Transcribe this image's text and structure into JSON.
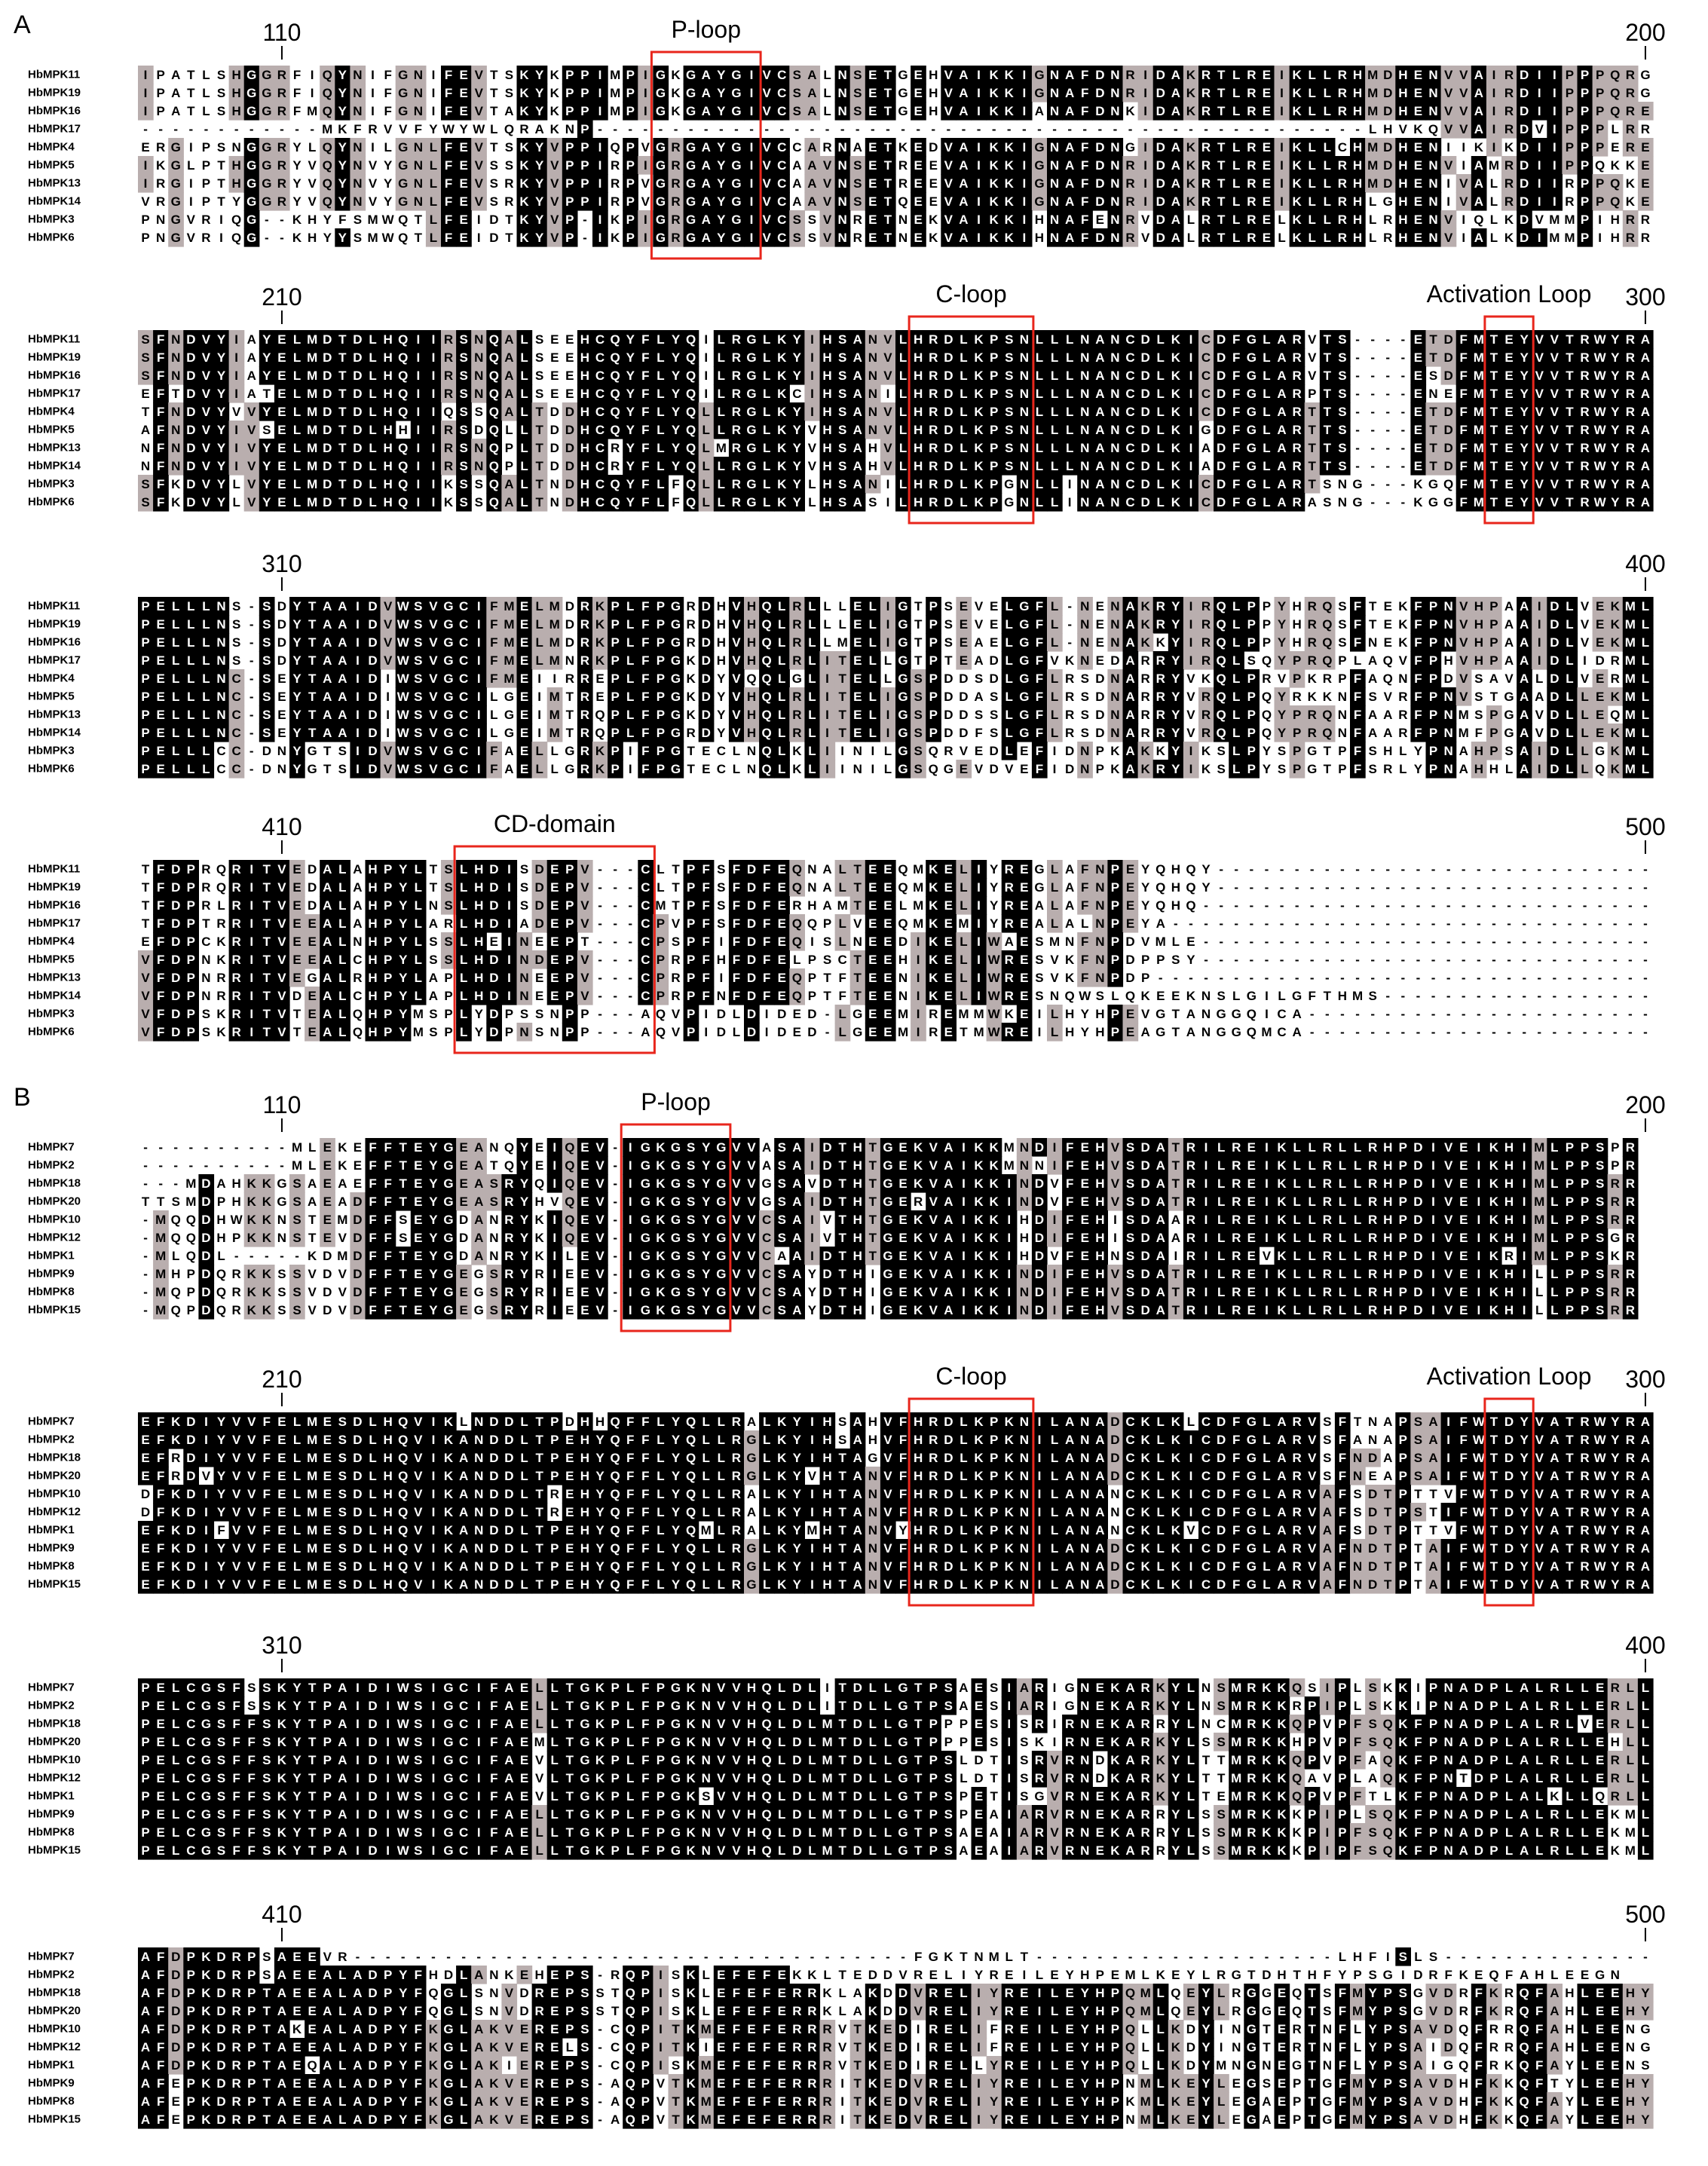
{
  "panels": [
    {
      "label": "A",
      "blocks": [
        {
          "start": 110,
          "end": 200,
          "motifs": [
            "P-loop"
          ],
          "rows": [
            {
              "name": "HbMPK11",
              "seq": "IPATLSHGGRFIQYNIFGNIFEVTSKYKPPIMPIGKGAYGIVCSALNSETGEHVAIKKIGNAFDNRIDAKRTLREIKLLRHMDHENVVAIRDIIPPPQRG"
            },
            {
              "name": "HbMPK19",
              "seq": "IPATLSHGGRFIQYNIFGNIFEVTSKYKPPIMPIGKGAYGIVCSALNSETGEHVAIKKIGNAFDNRIDAKRTLREIKLLRHMDHENVVAIRDIIPPPQRG"
            },
            {
              "name": "HbMPK16",
              "seq": "IPATLSHGGRFMQYNIFGNIFEVTAKYKPPIMPIGKGAYGIVCSALNSETGEHVAIKKIANAFDNKIDAKRTLREIKLLRHMDHENVVAIRDIIPPPQRE"
            },
            {
              "name": "HbMPK17",
              "seq": "------------MKFRVVFYWYWLQRAKNP---------------------------------------------------LHVKQVVAIRDVIPPPLRR"
            },
            {
              "name": "HbMPK4",
              "seq": "ERGIPSNGGRYLQYNILGNLFEVTSKYVPPIQPVGRGAYGIVCCARNAETKEDVAIKKIGNAFDNGIDAKRTLREIKLLCHMDHENIIKIKDIIPPPERE"
            },
            {
              "name": "HbMPK5",
              "seq": "IKGLPTHGGRYVQYNVYGNLFEVSSKYVPPIRPIGRGAYGIVCAAVNSETREEVAIKKIGNAFDNRIDAKRTLREIKLLRHMDHENVIAMRDIIPPQKKE"
            },
            {
              "name": "HbMPK13",
              "seq": "IRGIPTHGGRYVQYNVYGNLFEVSRKYVPPIRPVGRGAYGIVCAAVNSETREEVAIKKIGNAFDNRIDAKRTLREIKLLRHMDHENIVALRDIIRPPQKE"
            },
            {
              "name": "HbMPK14",
              "seq": "VRGIPTYGGRYVQYNVYGNLFEVSRKYVPPIRPVGRGAYGIVCAAVNSETQEEVAIKKIGNAFDNRIDAKRTLREIKLLRHLGHENIVALRDIIRPPQKE"
            },
            {
              "name": "HbMPK3",
              "seq": "PNGVRIQG--KHYFSMWQTLFEIDTKYVP-IKPIGRGAYGIVCSSVNRETNEKVAIKKIHNAFENRVDALRTLRELKLLRHLRHENVIQLKDVMMPIHRR"
            },
            {
              "name": "HbMPK6",
              "seq": "PNGVRIQG--KHYYSMWQTLFEIDTKYVP-IKPIGRGAYGIVCSSVNRETNEKVAIKKIHNAFDNRVDALRTLRELKLLRHLRHENVIALKDIMMPIHRR"
            }
          ]
        },
        {
          "start": 210,
          "end": 300,
          "motifs": [
            "C-loop",
            "Activation Loop"
          ],
          "rows": [
            {
              "name": "HbMPK11",
              "seq": "SFNDVYIAYELMDTDLHQIIRSNQALSEEHCQYFLYQILRGLKYIHSANVLHRDLKPSNLLLNANCDLKICDFGLARVTS----ETDFMTEYVVTRWYRA"
            },
            {
              "name": "HbMPK19",
              "seq": "SFNDVYIAYELMDTDLHQIIRSNQALSEEHCQYFLYQILRGLKYIHSANVLHRDLKPSNLLLNANCDLKICDFGLARVTS----ETDFMTEYVVTRWYRA"
            },
            {
              "name": "HbMPK16",
              "seq": "SFNDVYIAYELMDTDLHQIIRSNQALSEEHCQYFLYQILRGLKYIHSANVLHRDLKPSNLLLNANCDLKICDFGLARVTS----ESDFMTEYVVTRWYRA"
            },
            {
              "name": "HbMPK17",
              "seq": "EFTDVYIATELMDTDLHQIIRSNQALSEEHCQYFLYQILRGLKCIHSANILHRDLKPSNLLLNANCDLKICDFGLARPTS----ENEFMTEYVVTRWYRA"
            },
            {
              "name": "HbMPK4",
              "seq": "TFNDVYVVYELMDTDLHQIIQSSQALTDDHCQYFLYQLLRGLKYIHSANVLHRDLKPSNLLLNANCDLKICDFGLARTTS----ETDFMTEYVVTRWYRA"
            },
            {
              "name": "HbMPK5",
              "seq": "AFNDVYIVSELMDTDLHHIIRSDQLLTDDHCQYFLYQLLRGLKYVHSANVLHRDLKPSNLLLNANCDLKIGDFGLARTTS----ETDFMTEYVVTRWYRA"
            },
            {
              "name": "HbMPK13",
              "seq": "NFNDVYIVYELMDTDLHQIIRSNQPLTDDHCRYFLYQLMRGLKYVHSAHVLHRDLKPSNLLLNANCDLKIADFGLARTTS----ETDFMTEYVVTRWYRA"
            },
            {
              "name": "HbMPK14",
              "seq": "NFNDVYIVYELMDTDLHQIIRSNQPLTDDHCRYFLYQLLRGLKYVHSAHVLHRDLKPSNLLLNANCDLKIADFGLARTTS----ETDFMTEYVVTRWYRA"
            },
            {
              "name": "HbMPK3",
              "seq": "SFKDVYLVYELMDTDLHQIIKSSQALTNDHCQYFLFQLLRGLKYLHSANILHRDLKPGNLLINANCDLKICDFGLARTSNG---KGQFMTEYVVTRWYRA"
            },
            {
              "name": "HbMPK6",
              "seq": "SFKDVYLVYELMDTDLHQIIKSSQALTNDHCQYFLFQLLRGLKYLHSASILHRDLKPGNLLINANCDLKICDFGLARASNG---KGGFMTEYVVTRWYRA"
            }
          ]
        },
        {
          "start": 310,
          "end": 400,
          "motifs": [],
          "rows": [
            {
              "name": "HbMPK11",
              "seq": "PELLLNS-SDYTAAIDVWSVGCIFMELMDRKPLFPGRDHVHQLRLLLELIGTPSEVELGFL-NENAKRYIRQLPPYHRQSFTEKFPNVHPAAIDLVEKML"
            },
            {
              "name": "HbMPK19",
              "seq": "PELLLNS-SDYTAAIDVWSVGCIFMELMDRKPLFPGRDHVHQLRLLLELIGTPSEVELGFL-NENAKRYIRQLPPYHRQSFTEKFPNVHPAAIDLVEKML"
            },
            {
              "name": "HbMPK16",
              "seq": "PELLLNS-SDYTAAIDVWSVGCIFMELMDRKPLFPGRDHVHQLRLLMELIGTPSEAELGFL-NENAKKYIRQLPPYHRQSFNEKFPNVHPAAIDLVEKML"
            },
            {
              "name": "HbMPK17",
              "seq": "PELLLNS-SDYTAAIDVWSVGCIFMELMNRKPLFPGKDHVHQLRLITELLGTPTEADLGFVKNEDARRYIRQLSQYPRQPLAQVFPHVHPAAIDLIDRML"
            },
            {
              "name": "HbMPK4",
              "seq": "PELLLNC-SEYTAAIDIWSVGCIFMEIIRREPLFPGKDYVQQLGLITELLGSPDDSDLGFLRSDNARRYVKQLPRVPKRPFAQNFPDVSAVALDLVERML"
            },
            {
              "name": "HbMPK5",
              "seq": "PELLLNC-SEYTAAIDIWSVGCILGEIMTREPLFPGKDYVHQLRLITELIGSPDDASLGFLRSDNARRYVRQLPQYRKKNFSVRFPNVSTGAADLLEKML"
            },
            {
              "name": "HbMPK13",
              "seq": "PELLLNC-SEYTAAIDIWSVGCILGEIMTRQPLFPGKDYVHQLRLITELIGSPDDSSLGFLRSDNARRYVRQLPQYPRQNFAARFPNMSPGAVDLLEQML"
            },
            {
              "name": "HbMPK14",
              "seq": "PELLLNC-SEYTAAIDIWSVGCILGEIMTRQPLFPGRDYVHQLRLITELIGSPDDFSLGFLRSDNARRYVRQLPQYPRQNFAARFPNMFPGAVDLLEKML"
            },
            {
              "name": "HbMPK3",
              "seq": "PELLLCC-DNYGTSIDVWSVGCIFAELLGRKPIFPGTECLNQLKLIINILGSQRVEDLEFIDNPKAKKYIKSLPYSPGTPFSHLYPNAHPSAIDLLGKML"
            },
            {
              "name": "HbMPK6",
              "seq": "PELLLCC-DNYGTSIDVWSVGCIFAELLGRKPIFPGTECLNQLKLIINILGSQGEVDVEFIDNPKAKRYIKSLPYSPGTPFSRLYPNAHHLAIDLLQKML"
            }
          ]
        },
        {
          "start": 410,
          "end": 500,
          "motifs": [
            "CD-domain"
          ],
          "rows": [
            {
              "name": "HbMPK11",
              "seq": "TFDPRQRITVEDALAHPYLTSLHDISDEPV---CLTPFSFDFEQNALTEEQMKELIYREGLAFNPEYQHQY-----------------------------"
            },
            {
              "name": "HbMPK19",
              "seq": "TFDPRQRITVEDALAHPYLTSLHDISDEPV---CLTPFSFDFEQNALTEEQMKELIYREGLAFNPEYQHQY-----------------------------"
            },
            {
              "name": "HbMPK16",
              "seq": "TFDPRLRITVEDALAHPYLNSLHDISDEPV---CMTPFSFDFERHAMTEELMKELIYREALAFNPEYQHQ------------------------------"
            },
            {
              "name": "HbMPK17",
              "seq": "TFDPTRRITVEEALAHPYLARLHDIADEPV---CPVPFSFDFEQQPLVEEQMKEMIYREALALNPEYA--------------------------------"
            },
            {
              "name": "HbMPK4",
              "seq": "EFDPCKRITVEEALNHPYLSSLHEINEEPT---CPSPFIFDFEQISLNEEDIKELIWAESMNFNPDVMLE------------------------------"
            },
            {
              "name": "HbMPK5",
              "seq": "VFDPNKRITVEEALCHPYLSSLHDINDEPV---CPRPFHFDFELPSCTEEHIKELIWRESVKFNPDPPSY------------------------------"
            },
            {
              "name": "HbMPK13",
              "seq": "VFDPNRRITVEGALRHPYLAPLHDINEEPV---CPRPFIFDFEQPTFTEENIKELIWRESVKFNPDP---------------------------------"
            },
            {
              "name": "HbMPK14",
              "seq": "VFDPNRRITVDEALCHPYLAPLHDINEEPV---CPRPFNFDFEQPTFTEENIKELIWRESNQWSLQKEEKNSLGILGFTHMS------------------"
            },
            {
              "name": "HbMPK3",
              "seq": "VFDPSKRITVTEALQHPYMSPLYDPSSNPP---AQVPIDLDIDED-LGEEMIREMMWKEILHYHPEVGTANGGQICA-----------------------"
            },
            {
              "name": "HbMPK6",
              "seq": "VFDPSKRITVTEALQHPYMSPLYDPNSNPP---AQVPIDLDIDED-LGEEMIRETMWREILHYHPEAGTANGGQMCA-----------------------"
            }
          ]
        }
      ]
    },
    {
      "label": "B",
      "blocks": [
        {
          "start": 110,
          "end": 200,
          "motifs": [
            "P-loop"
          ],
          "rows": [
            {
              "name": "HbMPK7",
              "seq": "----------MLEKEFFTEYGEANQYEIQEV-IGKGSYGVVASAIDTHTGEKVAIKKMNDIFEHVSDATRILREIKLLRLLRHPDIVEIKHIMLPPSPR"
            },
            {
              "name": "HbMPK2",
              "seq": "----------MLEKEFFTEYGEATQYEIQEV-IGKGSYGVVASAIDTHTGEKVAIKKMNNIFEHVSDATRILREIKLLRLLRHPDIVEIKHIMLPPSPR"
            },
            {
              "name": "HbMPK18",
              "seq": "---MDAHKKGSAEAEFFTEYGEASRYQIQEV-IGKGSYGVVGSAVDTHTGEKVAIKKINDVFEHVSDATRILREIKLLRLLRHPDIVEIKHIMLPPSRR"
            },
            {
              "name": "HbMPK20",
              "seq": "TTSMDPHKKGSAEADFFTEYGEASRYHVQEV-IGKGSYGVVGSAIDTHTGERVAIKKINDVFEHVSDATRILREIKLLRLLRHPDIVEIKHIMLPPSRR"
            },
            {
              "name": "HbMPK10",
              "seq": "-MQQDHWKKNSTEMDFFSEYGDANRYKIQEV-IGKGSYGVVCSAIVTHTGEKVAIKKIHDIFEHISDAARILREIKLLRLLRHPDIVEIKHIMLPPSRR"
            },
            {
              "name": "HbMPK12",
              "seq": "-MQQDHPKKNSTEVDFFSEYGDANRYKIQEV-IGKGSYGVVCSAIVTHTGEKVAIKKIHDIFEHISDAARILREIKLLRLLRHPDIVEIKHIMLPPSGR"
            },
            {
              "name": "HbMPK1",
              "seq": "-MLQDL-----KDMDFFTEYGDANRYKILEV-IGKGSYGVVCAAIDTHTGEKVAIKKIHDVFEHNSDAIRILREVKLLRLLRHPDIVEIKRIMLPPSKR"
            },
            {
              "name": "HbMPK9",
              "seq": "-MHPDQRKKSSVDVDFFTEYGEGSRYRIEEV-IGKGSYGVVCSAYDTHIGEKVAIKKINDIFEHVSDATRILREIKLLRLLRHPDIVEIKHILLPPSRR"
            },
            {
              "name": "HbMPK8",
              "seq": "-MQPDQRKKSSVDVDFFTEYGEGSRYRIEEV-IGKGSYGVVCSAYDTHIGEKVAIKKINDIFEHVSDATRILREIKLLRLLRHPDIVEIKHILLPPSRR"
            },
            {
              "name": "HbMPK15",
              "seq": "-MQPDQRKKSSVDVDFFTEYGEGSRYRIEEV-IGKGSYGVVCSAYDTHIGEKVAIKKINDIFEHVSDATRILREIKLLRLLRHPDIVEIKHILLPPSRR"
            }
          ]
        },
        {
          "start": 210,
          "end": 300,
          "motifs": [
            "C-loop",
            "Activation Loop"
          ],
          "rows": [
            {
              "name": "HbMPK7",
              "seq": "EFKDIYVVFELMESDLHQVIKLNDDLTPDHHQFFLYQLLRALKYIHSAHVFHRDLKPKNILANADCKLKLCDFGLARVSFTNAPSAIFWTDYVATRWYRA"
            },
            {
              "name": "HbMPK2",
              "seq": "EFKDIYVVFELMESDLHQVIKANDDLTPEHYQFFLYQLLRGLKYIHSAHVFHRDLKPKNILANADCKLKICDFGLARVSFANAPSAIFWTDYVATRWYRA"
            },
            {
              "name": "HbMPK18",
              "seq": "EFRDIYVVFELMESDLHQVIKANDDLTPEHYQFFLYQLLRGLKYIHTAGVFHRDLKPKNILANADCKLKICDFGLARVSFNDAPSAIFWTDYVATRWYRA"
            },
            {
              "name": "HbMPK20",
              "seq": "EFRDVYVVFELMESDLHQVIKANDDLTPEHYQFFLYQLLRGLKYVHTANVFHRDLKPKNILANADCKLKICDFGLARVSFNEAPSAIFWTDYVATRWYRA"
            },
            {
              "name": "HbMPK10",
              "seq": "DFKDIYVVFELMESDLHQVIKANDDLTREHYQFFLYQLLRALKYIHTANVFHRDLKPKNILANANCKLKICDFGLARVAFSDTPTTVFWTDYVATRWYRA"
            },
            {
              "name": "HbMPK12",
              "seq": "DFKDIYVVFELMESDLHQVIKANDDLTREHYQFFLYQLLRALKYIHTANVFHRDLKPKNILANANCKLKICDFGLARVAFSDTPSTIFWTDYVATRWYRA"
            },
            {
              "name": "HbMPK1",
              "seq": "EFKDIFVVFELMESDLHQVIKANDDLTPEHYQFFLYQMLRALKYMHTANVYHRDLKPKNILANANCKLKVCDFGLARVAFSDTPTTVFWTDYVATRWYRA"
            },
            {
              "name": "HbMPK9",
              "seq": "EFKDIYVVFELMESDLHQVIKANDDLTPEHYQFFLYQLLRGLKYIHTANVFHRDLKPKNILANADCKLKICDFGLARVAFNDTPTAIFWTDYVATRWYRA"
            },
            {
              "name": "HbMPK8",
              "seq": "EFKDIYVVFELMESDLHQVIKANDDLTPEHYQFFLYQLLRGLKYIHTANVFHRDLKPKNILANADCKLKICDFGLARVAFNDTPTAIFWTDYVATRWYRA"
            },
            {
              "name": "HbMPK15",
              "seq": "EFKDIYVVFELMESDLHQVIKANDDLTPEHYQFFLYQLLRGLKYIHTANVFHRDLKPKNILANADCKLKICDFGLARVAFNDTPTAIFWTDYVATRWYRA"
            }
          ]
        },
        {
          "start": 310,
          "end": 400,
          "motifs": [],
          "rows": [
            {
              "name": "HbMPK7",
              "seq": "PELCGSFSSKYTPAIDIWSIGCIFAELLTGKPLFPGKNVVHQLDLITDLLGTPSAESIARIGNEKARKYLNSMRKKQSIPLSKKIPNADPLALRLLERLL"
            },
            {
              "name": "HbMPK2",
              "seq": "PELCGSFSSKYTPAIDIWSIGCIFAELLTGKPLFPGKNVVHQLDLITDLLGTPSAESIARIGNEKARKYLNSMRKKRPIPLSKKIPNADPLALRLLERLL"
            },
            {
              "name": "HbMPK18",
              "seq": "PELCGSFFSKYTPAIDIWSIGCIFAELLTGKPLFPGKNVVHQLDLMTDLLGTPPPESISRIRNEKARRYLNCMRKKQPVPFSQKFPNADPLALRLVERLL"
            },
            {
              "name": "HbMPK20",
              "seq": "PELCGSFFSKYTPAIDIWSIGCIFAEMLTGKPLFPGKNVVHQLDLMTDLLGTPPPESISKIRNEKARKYLSSMRKKHPVPFSQKFPNADPLALRLLEHLL"
            },
            {
              "name": "HbMPK10",
              "seq": "PELCGSFFSKYTPAIDIWSIGCIFAEVLTGKPLFPGKNVVHQLDLMTDLLGTPSLDTISRVRNDKARKYLTTMRKKQPVPFAQKFPNADPLALRLLERLL"
            },
            {
              "name": "HbMPK12",
              "seq": "PELCGSFFSKYTPAIDIWSIGCIFAEVLTGKPLFPGKNVVHQLDLMTDLLGTPSLDTISRVRNDKARKYLTTMRKKQAVPLAQKFPNTDPLALRLLERLL"
            },
            {
              "name": "HbMPK1",
              "seq": "PELCGSFFSKYTPAIDIWSIGCIFAEVLTGKPLFPGKSVVHQLDLMTDLLGTPSPETISGVRNEKARKYLTEMRKKQPVPFTLKFPNADPLALKLLQRLL"
            },
            {
              "name": "HbMPK9",
              "seq": "PELCGSFFSKYTPAIDIWSIGCIFAELLTGKPLFPGKNVVHQLDLMTDLLGTPSPEAIARVRNEKARRYLSSMRKKKPIPLSQKFPNADPLALRLLEKML"
            },
            {
              "name": "HbMPK8",
              "seq": "PELCGSFFSKYTPAIDIWSIGCIFAELLTGKPLFPGKNVVHQLDLMTDLLGTPSAEAIARVRNEKARRYLSSMRKKKPIPFSQKFPNADPLALRLLEKML"
            },
            {
              "name": "HbMPK15",
              "seq": "PELCGSFFSKYTPAIDIWSIGCIFAELLTGKPLFPGKNVVHQLDLMTDLLGTPSAEAIARVRNEKARRYLSSMRKKKPIPFSQKFPNADPLALRLLEKML"
            }
          ]
        },
        {
          "start": 410,
          "end": 500,
          "motifs": [],
          "rows": [
            {
              "name": "HbMPK7",
              "seq": "AFDPKDRPSAEEVR-------------------------------------FGKTNMLT--------------------LHFISLS--------------"
            },
            {
              "name": "HbMPK2",
              "seq": "AFDPKDRPSAEEALADPYFHDLANKEHEPS-RQPISKLEFEFEKKLTEDDVRELIYREILEYHPEMLKEYLRGTDHTHFYPSGIDRFKEQFAHLEEGN"
            },
            {
              "name": "HbMPK18",
              "seq": "AFDPKDRPTAEEALADPYFQGLSNVDREPSSTQPISKLEFEFERRKLAKDDVRELIYREILEYHPQMLQEYLRGGEQTSFMYPSGVDRFKRQFAHLEEHY"
            },
            {
              "name": "HbMPK20",
              "seq": "AFDPKDRPTAEEALADPYFQGLSNVDREPSSTQPISKLEFEFERRKLAKDDVRELIYREILEYHPQMLQEYLRGGEQTSFMYPSGVDRFKRQFAHLEEHY"
            },
            {
              "name": "HbMPK10",
              "seq": "AFDPKDRPTAKEALADPYFKGLAKVEREPS-CQPITKMEFEFERRRVTKEDIRELIFREILEYHPQLLKDYINGTERTNFLYPSAVDQFRRQFAHLEENG"
            },
            {
              "name": "HbMPK12",
              "seq": "AFDPKDRPTAEEALADPYFKGLAKVERELS-CQPITKIEFEFERRRVTKEDIRELIFREILEYHPQLLKDYINGTERTNFLYPSAIDQFRRQFAHLEENG"
            },
            {
              "name": "HbMPK1",
              "seq": "AFDPKDRPTAEQALADPYFKGLAKIEREPS-CQPISKMEFEFERRRVTKEDIRELLYREILEYHPQLLKDYMNGNEGTNFLYPSAIGQFRKQFAYLEENS"
            },
            {
              "name": "HbMPK9",
              "seq": "AFEPKDRPTAEEALADPYFKGLAKVEREPS-AQPVTKMEFEFERRRITKEDVRELIYREILEYHPNMLKEYLEGSEPTGFMYPSAVDHFKKQFTYLEEHY"
            },
            {
              "name": "HbMPK8",
              "seq": "AFEPKDRPTAEEALADPYFKGLAKVEREPS-AQPVTKMEFEFERRRITKEDVRELIYREILEYHPKMLKEYLEGAEPTGFMYPSAVDHFKKQFAYLEEHY"
            },
            {
              "name": "HbMPK15",
              "seq": "AFEPKDRPTAEEALADPYFKGLAKVEREPS-AQPVTKMEFEFERRRITKEDVRELIYREILEYHPNMLKEYLEGAEPTGFMYPSAVDHFKKQFAYLEEHY"
            }
          ]
        }
      ]
    }
  ]
}
